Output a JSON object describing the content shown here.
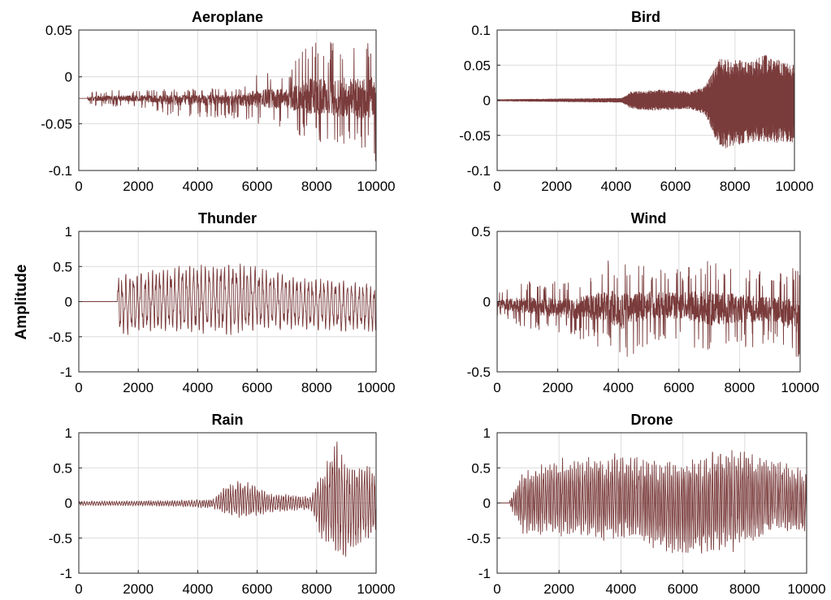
{
  "figure": {
    "ylabel": "Amplitude",
    "line_color": "#7a3b3b"
  },
  "chart_data": [
    {
      "type": "line",
      "title": "Aeroplane",
      "xlim": [
        0,
        10000
      ],
      "ylim": [
        -0.1,
        0.05
      ],
      "xticks": [
        0,
        2000,
        4000,
        6000,
        8000,
        10000
      ],
      "yticks": [
        0.05,
        0,
        -0.05,
        -0.1
      ],
      "ytick_labels": [
        "0.05",
        "0",
        "-0.05",
        "-0.1"
      ],
      "grid": true,
      "baseline": -0.023,
      "onset": 300,
      "envelope": [
        [
          0,
          0.0,
          0.0
        ],
        [
          300,
          -0.015,
          -0.031
        ],
        [
          2000,
          -0.014,
          -0.032
        ],
        [
          3200,
          -0.013,
          -0.043
        ],
        [
          5500,
          -0.012,
          -0.045
        ],
        [
          6000,
          0.005,
          -0.05
        ],
        [
          7000,
          0.005,
          -0.055
        ],
        [
          7700,
          0.04,
          -0.07
        ],
        [
          9000,
          0.04,
          -0.08
        ],
        [
          10000,
          0.04,
          -0.09
        ]
      ],
      "freq": 1.3,
      "spiky": true
    },
    {
      "type": "line",
      "title": "Bird",
      "xlim": [
        0,
        10000
      ],
      "ylim": [
        -0.1,
        0.1
      ],
      "xticks": [
        0,
        2000,
        4000,
        6000,
        8000,
        10000
      ],
      "yticks": [
        0.1,
        0.05,
        0,
        -0.05,
        -0.1
      ],
      "ytick_labels": [
        "0.1",
        "0.05",
        "0",
        "-0.05",
        "-0.1"
      ],
      "grid": true,
      "baseline": 0,
      "onset": 0,
      "envelope": [
        [
          0,
          0.001,
          -0.001
        ],
        [
          2000,
          0.002,
          -0.002
        ],
        [
          4200,
          0.003,
          -0.003
        ],
        [
          4500,
          0.012,
          -0.012
        ],
        [
          5500,
          0.015,
          -0.015
        ],
        [
          6500,
          0.012,
          -0.012
        ],
        [
          7000,
          0.02,
          -0.02
        ],
        [
          7500,
          0.06,
          -0.07
        ],
        [
          8500,
          0.055,
          -0.06
        ],
        [
          9000,
          0.065,
          -0.06
        ],
        [
          10000,
          0.05,
          -0.06
        ]
      ],
      "freq": 4.0,
      "dense": true
    },
    {
      "type": "line",
      "title": "Thunder",
      "xlim": [
        0,
        10000
      ],
      "ylim": [
        -1,
        1
      ],
      "xticks": [
        0,
        2000,
        4000,
        6000,
        8000,
        10000
      ],
      "yticks": [
        1,
        0.5,
        0,
        -0.5,
        -1
      ],
      "ytick_labels": [
        "1",
        "0.5",
        "0",
        "-0.5",
        "-1"
      ],
      "grid": true,
      "baseline": 0,
      "onset": 1300,
      "envelope": [
        [
          0,
          0.0,
          0.0
        ],
        [
          1300,
          0.4,
          -0.5
        ],
        [
          3000,
          0.5,
          -0.45
        ],
        [
          5200,
          0.6,
          -0.5
        ],
        [
          7000,
          0.4,
          -0.4
        ],
        [
          10000,
          0.25,
          -0.45
        ]
      ],
      "freq": 0.35
    },
    {
      "type": "line",
      "title": "Wind",
      "xlim": [
        0,
        10000
      ],
      "ylim": [
        -0.5,
        0.5
      ],
      "xticks": [
        0,
        2000,
        4000,
        6000,
        8000,
        10000
      ],
      "yticks": [
        0.5,
        0,
        -0.5
      ],
      "ytick_labels": [
        "0.5",
        "0",
        "-0.5"
      ],
      "grid": true,
      "baseline": 0,
      "onset": 0,
      "envelope": [
        [
          0,
          0.06,
          -0.1
        ],
        [
          1000,
          0.15,
          -0.2
        ],
        [
          2500,
          0.15,
          -0.25
        ],
        [
          3700,
          0.3,
          -0.35
        ],
        [
          4000,
          0.3,
          -0.45
        ],
        [
          5000,
          0.25,
          -0.3
        ],
        [
          6000,
          0.25,
          -0.3
        ],
        [
          7000,
          0.3,
          -0.4
        ],
        [
          8000,
          0.25,
          -0.35
        ],
        [
          9000,
          0.2,
          -0.3
        ],
        [
          10000,
          0.25,
          -0.45
        ]
      ],
      "freq": 1.1,
      "spiky": true
    },
    {
      "type": "line",
      "title": "Rain",
      "xlim": [
        0,
        10000
      ],
      "ylim": [
        -1,
        1
      ],
      "xticks": [
        0,
        2000,
        4000,
        6000,
        8000,
        10000
      ],
      "yticks": [
        1,
        0.5,
        0,
        -0.5,
        -1
      ],
      "ytick_labels": [
        "1",
        "0.5",
        "0",
        "-0.5",
        "-1"
      ],
      "grid": true,
      "baseline": 0,
      "onset": 0,
      "envelope": [
        [
          0,
          0.03,
          -0.04
        ],
        [
          3000,
          0.04,
          -0.05
        ],
        [
          4500,
          0.06,
          -0.08
        ],
        [
          5000,
          0.3,
          -0.2
        ],
        [
          5500,
          0.35,
          -0.25
        ],
        [
          6500,
          0.15,
          -0.15
        ],
        [
          7800,
          0.1,
          -0.1
        ],
        [
          8200,
          0.5,
          -0.6
        ],
        [
          8700,
          1.0,
          -0.85
        ],
        [
          9000,
          0.6,
          -0.8
        ],
        [
          10000,
          0.6,
          -0.5
        ]
      ],
      "freq": 0.55
    },
    {
      "type": "line",
      "title": "Drone",
      "xlim": [
        0,
        10000
      ],
      "ylim": [
        -1,
        1
      ],
      "xticks": [
        0,
        2000,
        4000,
        6000,
        8000,
        10000
      ],
      "yticks": [
        1,
        0.5,
        0,
        -0.5,
        -1
      ],
      "ytick_labels": [
        "1",
        "0.5",
        "0",
        "-0.5",
        "-1"
      ],
      "grid": true,
      "baseline": 0,
      "onset": 400,
      "envelope": [
        [
          0,
          0.0,
          0.0
        ],
        [
          400,
          0.03,
          -0.03
        ],
        [
          800,
          0.5,
          -0.5
        ],
        [
          2000,
          0.7,
          -0.55
        ],
        [
          4000,
          0.75,
          -0.6
        ],
        [
          6000,
          0.7,
          -0.85
        ],
        [
          7500,
          0.85,
          -0.8
        ],
        [
          9000,
          0.7,
          -0.5
        ],
        [
          10000,
          0.5,
          -0.5
        ]
      ],
      "freq": 0.7
    }
  ]
}
